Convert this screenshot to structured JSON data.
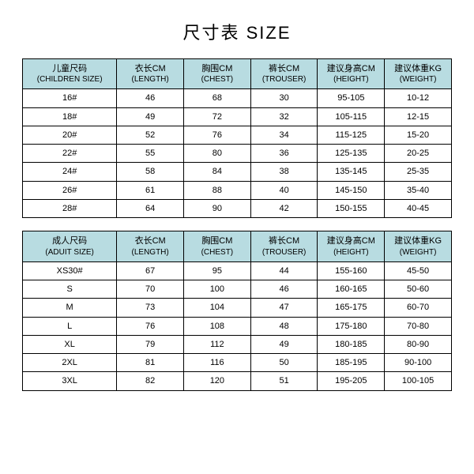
{
  "title": "尺寸表 SIZE",
  "columns": {
    "col0": {
      "cn_children": "儿童尺码",
      "en_children": "(CHILDREN SIZE)",
      "cn_adult": "成人尺码",
      "en_adult": "(ADUIT SIZE)"
    },
    "col1": {
      "cn": "衣长CM",
      "en": "(LENGTH)"
    },
    "col2": {
      "cn": "胸围CM",
      "en": "(CHEST)"
    },
    "col3": {
      "cn": "裤长CM",
      "en": "(TROUSER)"
    },
    "col4": {
      "cn": "建议身高CM",
      "en": "(HEIGHT)"
    },
    "col5": {
      "cn": "建议体重KG",
      "en": "(WEIGHT)"
    }
  },
  "children_rows": [
    {
      "size": "16#",
      "length": "46",
      "chest": "68",
      "trouser": "30",
      "height": "95-105",
      "weight": "10-12"
    },
    {
      "size": "18#",
      "length": "49",
      "chest": "72",
      "trouser": "32",
      "height": "105-115",
      "weight": "12-15"
    },
    {
      "size": "20#",
      "length": "52",
      "chest": "76",
      "trouser": "34",
      "height": "115-125",
      "weight": "15-20"
    },
    {
      "size": "22#",
      "length": "55",
      "chest": "80",
      "trouser": "36",
      "height": "125-135",
      "weight": "20-25"
    },
    {
      "size": "24#",
      "length": "58",
      "chest": "84",
      "trouser": "38",
      "height": "135-145",
      "weight": "25-35"
    },
    {
      "size": "26#",
      "length": "61",
      "chest": "88",
      "trouser": "40",
      "height": "145-150",
      "weight": "35-40"
    },
    {
      "size": "28#",
      "length": "64",
      "chest": "90",
      "trouser": "42",
      "height": "150-155",
      "weight": "40-45"
    }
  ],
  "adult_rows": [
    {
      "size": "XS30#",
      "length": "67",
      "chest": "95",
      "trouser": "44",
      "height": "155-160",
      "weight": "45-50"
    },
    {
      "size": "S",
      "length": "70",
      "chest": "100",
      "trouser": "46",
      "height": "160-165",
      "weight": "50-60"
    },
    {
      "size": "M",
      "length": "73",
      "chest": "104",
      "trouser": "47",
      "height": "165-175",
      "weight": "60-70"
    },
    {
      "size": "L",
      "length": "76",
      "chest": "108",
      "trouser": "48",
      "height": "175-180",
      "weight": "70-80"
    },
    {
      "size": "XL",
      "length": "79",
      "chest": "112",
      "trouser": "49",
      "height": "180-185",
      "weight": "80-90"
    },
    {
      "size": "2XL",
      "length": "81",
      "chest": "116",
      "trouser": "50",
      "height": "185-195",
      "weight": "90-100"
    },
    {
      "size": "3XL",
      "length": "82",
      "chest": "120",
      "trouser": "51",
      "height": "195-205",
      "weight": "100-105"
    }
  ],
  "header_bg": "#b8dce1",
  "border_color": "#000000"
}
